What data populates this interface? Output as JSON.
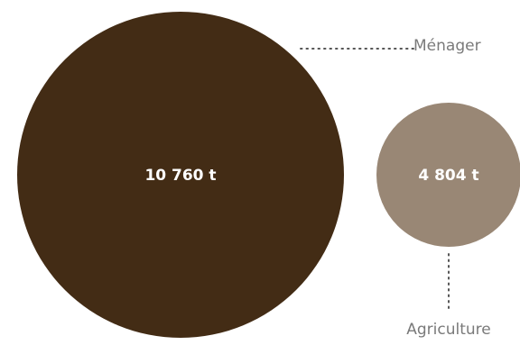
{
  "chart_data": {
    "type": "bubble",
    "unit": "t",
    "items": [
      {
        "label": "Ménager",
        "value": 10760,
        "value_label": "10 760 t",
        "color": "#432c15"
      },
      {
        "label": "Agriculture",
        "value": 4804,
        "value_label": "4 804 t",
        "color": "#998775"
      }
    ]
  }
}
